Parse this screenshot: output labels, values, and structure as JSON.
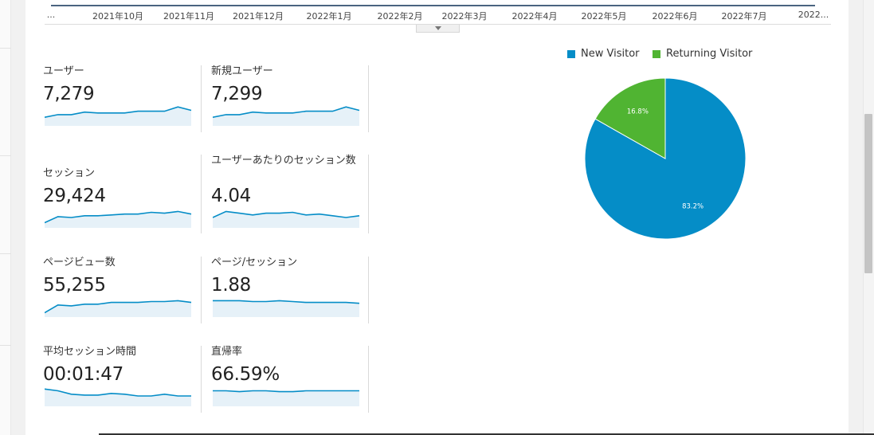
{
  "timeline": {
    "labels": [
      "...",
      "2021年10月",
      "2021年11月",
      "2021年12月",
      "2022年1月",
      "2022年2月",
      "2022年3月",
      "2022年4月",
      "2022年5月",
      "2022年6月",
      "2022年7月",
      "2022..."
    ]
  },
  "metrics": [
    {
      "id": "users",
      "label": "ユーザー",
      "value": "7,279",
      "trend": [
        10,
        13,
        13,
        16,
        15,
        15,
        15,
        17,
        17,
        17,
        22,
        18
      ]
    },
    {
      "id": "new_users",
      "label": "新規ユーザー",
      "value": "7,299",
      "trend": [
        10,
        13,
        13,
        16,
        15,
        15,
        15,
        17,
        17,
        17,
        22,
        18
      ]
    },
    {
      "id": "sessions",
      "label": "セッション",
      "value": "29,424",
      "trend": [
        6,
        13,
        12,
        14,
        14,
        15,
        16,
        16,
        18,
        17,
        19,
        16
      ]
    },
    {
      "id": "sessions_per_user",
      "label": "ユーザーあたりのセッション数",
      "value": "4.04",
      "trend": [
        12,
        19,
        17,
        15,
        17,
        17,
        18,
        15,
        16,
        14,
        12,
        14
      ]
    },
    {
      "id": "pageviews",
      "label": "ページビュー数",
      "value": "55,255",
      "trend": [
        5,
        14,
        13,
        15,
        15,
        17,
        17,
        17,
        18,
        18,
        19,
        17
      ]
    },
    {
      "id": "pages_per_session",
      "label": "ページ/セッション",
      "value": "1.88",
      "trend": [
        19,
        19,
        19,
        18,
        18,
        19,
        18,
        17,
        17,
        17,
        17,
        16
      ]
    },
    {
      "id": "avg_session_duration",
      "label": "平均セッション時間",
      "value": "00:01:47",
      "trend": [
        20,
        18,
        14,
        13,
        13,
        15,
        14,
        12,
        12,
        14,
        12,
        12
      ]
    },
    {
      "id": "bounce_rate",
      "label": "直帰率",
      "value": "66.59%",
      "trend": [
        18,
        18,
        17,
        18,
        18,
        17,
        17,
        18,
        18,
        18,
        18,
        18
      ]
    }
  ],
  "pie": {
    "legend": [
      {
        "label": "New Visitor",
        "color": "#058dc7"
      },
      {
        "label": "Returning Visitor",
        "color": "#50b432"
      }
    ],
    "chart_data": {
      "type": "pie",
      "categories": [
        "New Visitor",
        "Returning Visitor"
      ],
      "values": [
        83.2,
        16.8
      ],
      "value_labels": [
        "83.2%",
        "16.8%"
      ],
      "colors": [
        "#058dc7",
        "#50b432"
      ]
    }
  }
}
